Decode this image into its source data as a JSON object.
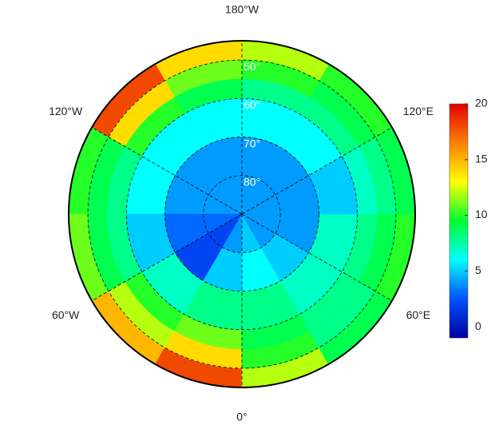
{
  "map": {
    "projection": "north-polar",
    "outer_lat": 45,
    "lon_labels": [
      {
        "lon": 180,
        "label": "180°W"
      },
      {
        "lon": 120,
        "label": "120°E"
      },
      {
        "lon": 60,
        "label": "60°E"
      },
      {
        "lon": 0,
        "label": "0°"
      },
      {
        "lon": -60,
        "label": "60°W"
      },
      {
        "lon": -120,
        "label": "120°W"
      }
    ],
    "lat_labels": [
      {
        "lat": 50,
        "label": "50°"
      },
      {
        "lat": 60,
        "label": "60°"
      },
      {
        "lat": 70,
        "label": "70°"
      },
      {
        "lat": 80,
        "label": "80°"
      }
    ],
    "field": {
      "lat_edges": [
        45,
        50,
        55,
        60,
        70,
        80,
        90
      ],
      "lon_edges": [
        -180,
        -150,
        -120,
        -90,
        -60,
        -30,
        0,
        30,
        60,
        90,
        120,
        150,
        180
      ],
      "values": [
        [
          14,
          18,
          10,
          11,
          15,
          18,
          12,
          9,
          10,
          9,
          10,
          12
        ],
        [
          11,
          14,
          9,
          9,
          12,
          14,
          10,
          8,
          9,
          8,
          9,
          10
        ],
        [
          9,
          10,
          8,
          8,
          10,
          11,
          9,
          8,
          8,
          7,
          8,
          8
        ],
        [
          6,
          6,
          6,
          5,
          7,
          8,
          8,
          7,
          7,
          5,
          6,
          6
        ],
        [
          4,
          4,
          4,
          3,
          2,
          5,
          6,
          5,
          4,
          4,
          4,
          4
        ],
        [
          4,
          4,
          4,
          3,
          2,
          4,
          5,
          4,
          4,
          4,
          4,
          4
        ]
      ]
    },
    "colorbar": {
      "clim": [
        -1,
        20
      ],
      "ticks": [
        0,
        5,
        10,
        15,
        20
      ],
      "colormap": [
        "#0000a0",
        "#0050ff",
        "#00ffff",
        "#00ff30",
        "#ffff00",
        "#ff8000",
        "#e00000"
      ]
    }
  }
}
